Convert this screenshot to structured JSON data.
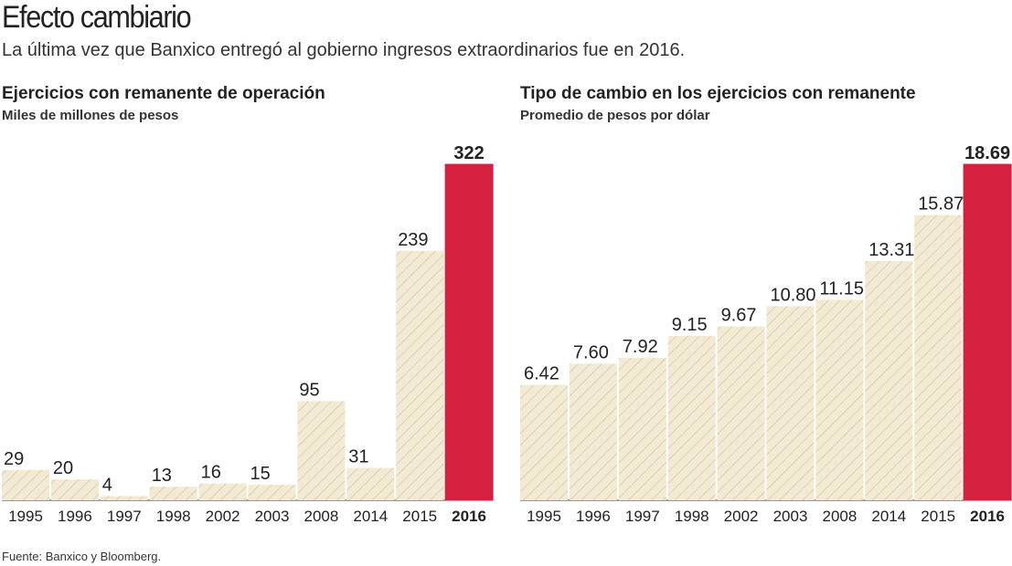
{
  "header": {
    "title": "Efecto cambiario",
    "subtitle": "La última vez que Banxico entregó al gobierno ingresos extraordinarios fue en 2016."
  },
  "charts": [
    {
      "title": "Ejercicios con remanente de operación",
      "unit": "Miles de millones de pesos"
    },
    {
      "title": "Tipo de cambio en los ejercicios con remanente",
      "unit": "Promedio de pesos por dólar"
    }
  ],
  "source": "Fuente: Banxico y Bloomberg.",
  "colors": {
    "bar_fill": "#f3ead3",
    "hatch": "#cdbf9c",
    "highlight": "#d6203f",
    "text": "#222222",
    "axis": "#333333"
  },
  "chart_data": [
    {
      "type": "bar",
      "title": "Ejercicios con remanente de operación",
      "ylabel": "Miles de millones de pesos",
      "categories": [
        "1995",
        "1996",
        "1997",
        "1998",
        "2002",
        "2003",
        "2008",
        "2014",
        "2015",
        "2016"
      ],
      "values": [
        29,
        20,
        4,
        13,
        16,
        15,
        95,
        31,
        239,
        322
      ],
      "labels": [
        "29",
        "20",
        "4",
        "13",
        "16",
        "15",
        "95",
        "31",
        "239",
        "322"
      ],
      "highlight": "2016",
      "ylim": [
        0,
        322
      ]
    },
    {
      "type": "bar",
      "title": "Tipo de cambio en los ejercicios con remanente",
      "ylabel": "Promedio de pesos por dólar",
      "categories": [
        "1995",
        "1996",
        "1997",
        "1998",
        "2002",
        "2003",
        "2008",
        "2014",
        "2015",
        "2016"
      ],
      "values": [
        6.42,
        7.6,
        7.92,
        9.15,
        9.67,
        10.8,
        11.15,
        13.31,
        15.87,
        18.69
      ],
      "labels": [
        "6.42",
        "7.60",
        "7.92",
        "9.15",
        "9.67",
        "10.80",
        "11.15",
        "13.31",
        "15.87",
        "18.69"
      ],
      "highlight": "2016",
      "ylim": [
        0,
        18.69
      ]
    }
  ]
}
